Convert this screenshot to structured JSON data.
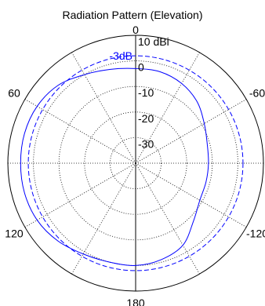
{
  "chart_data": {
    "type": "line",
    "coordinate_system": "polar",
    "title": "Radiation Pattern (Elevation)",
    "unit": "dBi",
    "angle_ticks": [
      {
        "value": 0,
        "label": "0"
      },
      {
        "value": -60,
        "label": "-60"
      },
      {
        "value": -120,
        "label": "-120"
      },
      {
        "value": 180,
        "label": "180"
      },
      {
        "value": 120,
        "label": "120"
      },
      {
        "value": 60,
        "label": "60"
      }
    ],
    "radial_ticks": [
      {
        "value": 10,
        "label": "10 dBi"
      },
      {
        "value": 0,
        "label": "0"
      },
      {
        "value": -10,
        "label": "-10"
      },
      {
        "value": -20,
        "label": "-20"
      },
      {
        "value": -30,
        "label": "-30"
      }
    ],
    "rlim": [
      -40,
      10
    ],
    "grid": true,
    "series": [
      {
        "style": "solid",
        "color": "#0000ff",
        "theta": [
          0,
          15,
          30,
          45,
          60,
          75,
          90,
          105,
          120,
          135,
          150,
          165,
          180,
          195,
          210,
          225,
          240,
          255,
          270,
          285,
          300,
          315,
          330,
          345
        ],
        "r": [
          -3,
          -2,
          0,
          3,
          4.5,
          5,
          5,
          5,
          4.5,
          3,
          1,
          0,
          0,
          -1,
          -3,
          -8,
          -11,
          -11.5,
          -11.5,
          -11,
          -9,
          -6,
          -4,
          -3
        ]
      }
    ],
    "reference": {
      "label": "-3dB",
      "style": "dashed",
      "color": "#0000ff",
      "value": 2
    }
  }
}
